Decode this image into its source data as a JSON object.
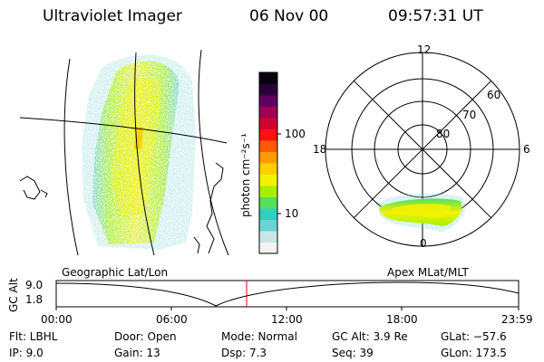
{
  "header": {
    "title": "Ultraviolet Imager",
    "date": "06 Nov 00",
    "time": "09:57:31 UT"
  },
  "colorbar": {
    "unit_label": "photon cm⁻²s⁻¹",
    "ticks": [
      "100",
      "10"
    ],
    "colors": [
      "#f2f2f2",
      "#c8e6e6",
      "#6ad4d4",
      "#2fd0c0",
      "#55e05a",
      "#a6f000",
      "#f2f200",
      "#ffd000",
      "#ff9a00",
      "#ff5a00",
      "#ff1010",
      "#d00030",
      "#a00050",
      "#600060",
      "#2a003a",
      "#0a0010"
    ]
  },
  "left_panel": {
    "caption": "Geographic Lat/Lon"
  },
  "polar_panel": {
    "caption": "Apex MLat/MLT",
    "mlt_labels": {
      "top": "12",
      "left": "18",
      "right": "6",
      "bottom": "0"
    },
    "lat_labels": [
      "60",
      "70",
      "80"
    ]
  },
  "altitude_plot": {
    "y_label": "GC Alt",
    "y_ticks": [
      "9.0",
      "1.8"
    ],
    "x_ticks": [
      "00:00",
      "06:00",
      "12:00",
      "18:00",
      "23:59"
    ],
    "current_time_marker_color": "#e00000"
  },
  "info": {
    "flt": "Flt: LBHL",
    "ip": "IP:  9.0",
    "door": "Door: Open",
    "gain": "Gain: 13",
    "mode": "Mode: Normal",
    "dsp": "Dsp:     7.3",
    "gc_alt": "GC Alt: 3.9 Re",
    "seq": "Seq: 39",
    "glat": "GLat: −57.6",
    "glon": "GLon: 173.5"
  }
}
